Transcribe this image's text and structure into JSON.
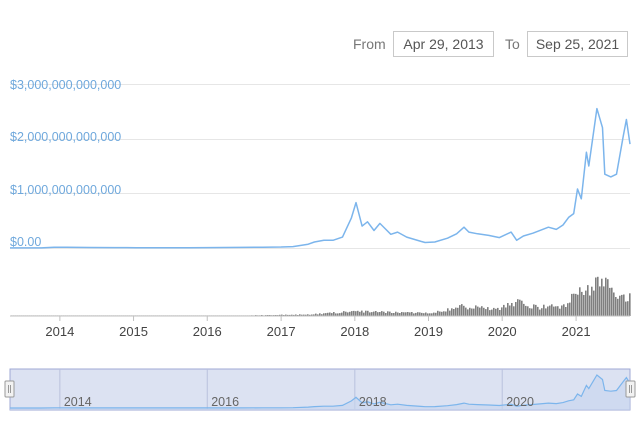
{
  "range_selector": {
    "from_label": "From",
    "from_value": "Apr 29, 2013",
    "to_label": "To",
    "to_value": "Sep 25, 2021"
  },
  "colors": {
    "line": "#7cb5ec",
    "volume": "#7f7f7f",
    "grid": "#e6e6e6",
    "navigator_fill": "#dce2f2",
    "navigator_border": "#9fa8d4",
    "axis_label": "#6fa8dc"
  },
  "chart_data": {
    "type": "line",
    "title": "",
    "xlabel": "",
    "ylabel": "",
    "y_tick_labels": [
      "$3,000,000,000,000",
      "$2,000,000,000,000",
      "$1,000,000,000,000",
      "$0.00"
    ],
    "y_ticks": [
      3000000000000,
      2000000000000,
      1000000000000,
      0
    ],
    "ylim": [
      0,
      3000000000000
    ],
    "x_range": [
      "2013-04-29",
      "2021-09-25"
    ],
    "x_tick_labels": [
      "2014",
      "2015",
      "2016",
      "2017",
      "2018",
      "2019",
      "2020",
      "2021"
    ],
    "grid": true,
    "legend": "none",
    "series": [
      {
        "kind": "line",
        "x": [
          "2013-04-29",
          "2013-07-01",
          "2013-10-01",
          "2013-12-04",
          "2014-02-01",
          "2014-06-01",
          "2014-10-01",
          "2015-01-15",
          "2015-06-01",
          "2015-10-01",
          "2016-01-01",
          "2016-06-15",
          "2016-10-01",
          "2017-01-01",
          "2017-03-01",
          "2017-05-15",
          "2017-06-15",
          "2017-08-01",
          "2017-09-15",
          "2017-11-01",
          "2017-12-15",
          "2018-01-07",
          "2018-02-06",
          "2018-03-05",
          "2018-04-06",
          "2018-05-05",
          "2018-06-28",
          "2018-08-01",
          "2018-09-15",
          "2018-11-25",
          "2018-12-15",
          "2019-02-01",
          "2019-04-05",
          "2019-05-20",
          "2019-06-26",
          "2019-07-20",
          "2019-09-01",
          "2019-10-26",
          "2019-12-18",
          "2020-02-14",
          "2020-03-13",
          "2020-04-15",
          "2020-06-01",
          "2020-08-17",
          "2020-09-25",
          "2020-10-28",
          "2020-11-25",
          "2020-12-20",
          "2021-01-08",
          "2021-01-27",
          "2021-02-21",
          "2021-03-05",
          "2021-04-14",
          "2021-05-12",
          "2021-05-23",
          "2021-06-22",
          "2021-07-20",
          "2021-08-23",
          "2021-09-07",
          "2021-09-25"
        ],
        "values": [
          1500000000.0,
          1200000000.0,
          2000000000.0,
          14000000000.0,
          12000000000.0,
          9500000000.0,
          6500000000.0,
          5000000000.0,
          5500000000.0,
          6000000000.0,
          7000000000.0,
          11000000000.0,
          14000000000.0,
          18000000000.0,
          25000000000.0,
          70000000000.0,
          110000000000.0,
          140000000000.0,
          140000000000.0,
          200000000000.0,
          550000000000.0,
          830000000000.0,
          400000000000.0,
          480000000000.0,
          320000000000.0,
          450000000000.0,
          250000000000.0,
          290000000000.0,
          200000000000.0,
          120000000000.0,
          100000000000.0,
          110000000000.0,
          180000000000.0,
          260000000000.0,
          380000000000.0,
          290000000000.0,
          260000000000.0,
          230000000000.0,
          190000000000.0,
          290000000000.0,
          140000000000.0,
          220000000000.0,
          270000000000.0,
          380000000000.0,
          340000000000.0,
          420000000000.0,
          560000000000.0,
          630000000000.0,
          1080000000000.0,
          900000000000.0,
          1750000000000.0,
          1500000000000.0,
          2550000000000.0,
          2200000000000.0,
          1350000000000.0,
          1300000000000.0,
          1350000000000.0,
          2050000000000.0,
          2350000000000.0,
          1900000000000.0
        ]
      },
      {
        "kind": "volume_bars",
        "note": "trading volume (unlabeled)",
        "x": [
          "2013-06-01",
          "2014-06-01",
          "2015-06-01",
          "2016-06-01",
          "2017-06-01",
          "2017-12-15",
          "2018-06-01",
          "2019-01-01",
          "2019-06-15",
          "2019-12-01",
          "2020-03-13",
          "2020-06-15",
          "2020-11-01",
          "2021-01-10",
          "2021-02-20",
          "2021-04-15",
          "2021-05-19",
          "2021-06-20",
          "2021-08-01",
          "2021-09-20"
        ],
        "values": [
          0.2,
          0.2,
          0.3,
          0.4,
          1.5,
          4.5,
          3.5,
          3.0,
          9.0,
          7.0,
          13.0,
          8.0,
          9.0,
          24.0,
          26.0,
          30.0,
          38.0,
          22.0,
          15.0,
          18.0
        ]
      }
    ]
  },
  "navigator": {
    "x_tick_labels": [
      "2014",
      "2016",
      "2018",
      "2020"
    ]
  }
}
